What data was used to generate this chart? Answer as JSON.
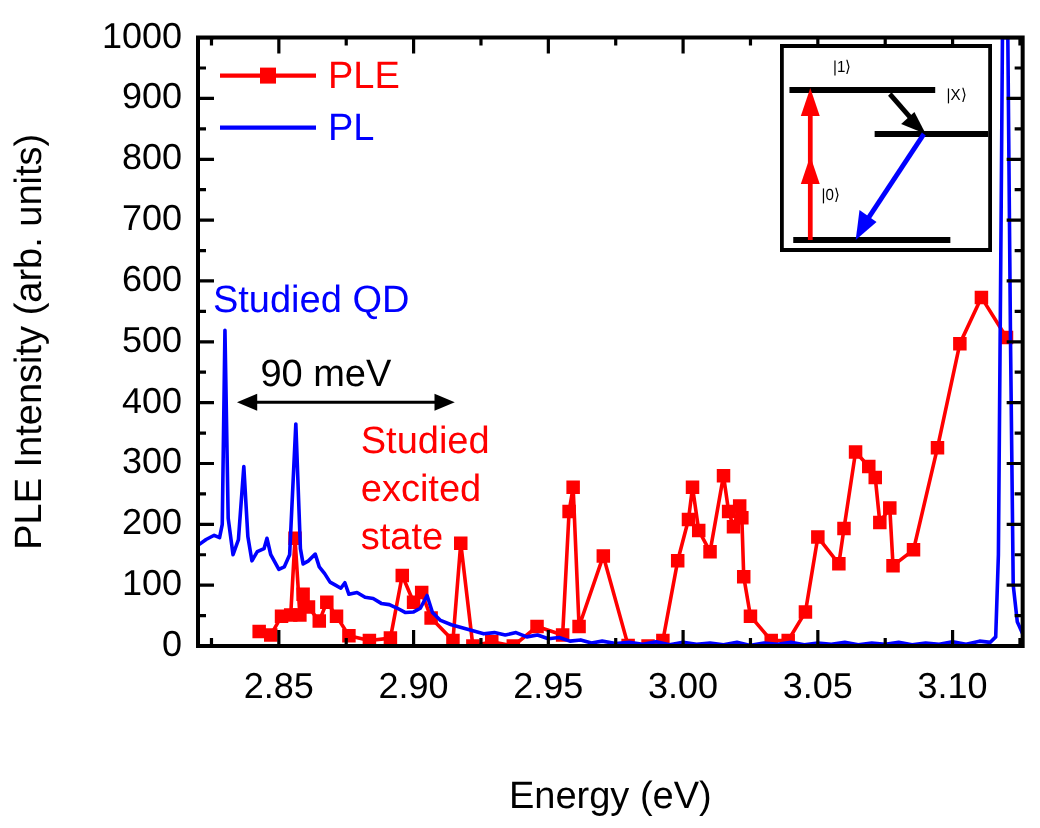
{
  "chart_data": {
    "type": "line",
    "xlabel": "Energy (eV)",
    "ylabel": "PLE Intensity (arb. units)",
    "xlim": [
      2.82,
      3.126
    ],
    "xticks": [
      {
        "value": 2.825,
        "label": null
      },
      2.85,
      {
        "value": 2.875,
        "label": null
      },
      {
        "value": 2.9,
        "label": "2.90"
      },
      {
        "value": 2.925,
        "label": null
      },
      2.95,
      {
        "value": 2.975,
        "label": null
      },
      {
        "value": 3.0,
        "label": "3.00"
      },
      {
        "value": 3.025,
        "label": null
      },
      3.05,
      {
        "value": 3.075,
        "label": null
      },
      {
        "value": 3.1,
        "label": "3.10"
      },
      {
        "value": 3.125,
        "label": null
      }
    ],
    "ylim": [
      0,
      1000
    ],
    "yticks": [
      0,
      {
        "value": 50,
        "label": null
      },
      100,
      {
        "value": 150,
        "label": null
      },
      200,
      {
        "value": 250,
        "label": null
      },
      300,
      {
        "value": 350,
        "label": null
      },
      400,
      {
        "value": 450,
        "label": null
      },
      500,
      {
        "value": 550,
        "label": null
      },
      600,
      {
        "value": 650,
        "label": null
      },
      700,
      {
        "value": 750,
        "label": null
      },
      800,
      {
        "value": 850,
        "label": null
      },
      900,
      {
        "value": 950,
        "label": null
      },
      1000
    ],
    "grid": false,
    "legend": "top left",
    "series": [
      {
        "name": "PLE",
        "color": "#ff0000",
        "marker": "square",
        "x": [
          2.8427,
          2.847,
          2.851,
          2.8544,
          2.856,
          2.8578,
          2.859,
          2.861,
          2.865,
          2.8678,
          2.8714,
          2.876,
          2.8836,
          2.8914,
          2.8958,
          2.9,
          2.903,
          2.9065,
          2.9146,
          2.9175,
          2.922,
          2.929,
          2.937,
          2.9458,
          2.9553,
          2.9577,
          2.9592,
          2.9614,
          2.9704,
          2.9796,
          2.987,
          2.9925,
          2.998,
          3.002,
          3.0035,
          3.0058,
          3.01,
          3.015,
          3.0169,
          3.0187,
          3.021,
          3.0218,
          3.0225,
          3.025,
          3.0327,
          3.039,
          3.0454,
          3.05,
          3.0578,
          3.0597,
          3.064,
          3.0689,
          3.0713,
          3.073,
          3.0767,
          3.0779,
          3.0855,
          3.0944,
          3.1027,
          3.1107,
          3.12
        ],
        "values": [
          24,
          18,
          49,
          51,
          177,
          51,
          85,
          64,
          41,
          72,
          49,
          17,
          9,
          13,
          116,
          72,
          88,
          46,
          9,
          169,
          0,
          7,
          0,
          32,
          18,
          221,
          261,
          32,
          148,
          1,
          0,
          9,
          140,
          208,
          261,
          190,
          155,
          280,
          221,
          196,
          230,
          211,
          114,
          49,
          9,
          9,
          56,
          179,
          135,
          193,
          319,
          295,
          277,
          203,
          227,
          132,
          158,
          326,
          497,
          573,
          507
        ]
      },
      {
        "name": "PL",
        "color": "#0000ff",
        "marker": "none",
        "x": [
          2.8205,
          2.823,
          2.826,
          2.828,
          2.829,
          2.83,
          2.8312,
          2.833,
          2.835,
          2.837,
          2.8385,
          2.84,
          2.842,
          2.8445,
          2.8456,
          2.847,
          2.85,
          2.852,
          2.854,
          2.8563,
          2.858,
          2.859,
          2.861,
          2.8635,
          2.865,
          2.867,
          2.869,
          2.871,
          2.873,
          2.8745,
          2.876,
          2.879,
          2.882,
          2.885,
          2.888,
          2.891,
          2.894,
          2.897,
          2.9,
          2.9025,
          2.905,
          2.907,
          2.91,
          2.914,
          2.918,
          2.922,
          2.926,
          2.93,
          2.934,
          2.938,
          2.942,
          2.946,
          2.95,
          2.954,
          2.958,
          2.962,
          2.966,
          2.97,
          2.975,
          2.98,
          2.985,
          2.99,
          2.995,
          3.0,
          3.005,
          3.01,
          3.015,
          3.02,
          3.025,
          3.03,
          3.035,
          3.04,
          3.045,
          3.05,
          3.055,
          3.06,
          3.065,
          3.07,
          3.075,
          3.08,
          3.085,
          3.09,
          3.095,
          3.1,
          3.105,
          3.11,
          3.114,
          3.116,
          3.117,
          3.118,
          3.1185,
          3.1205,
          3.1215,
          3.1225,
          3.124,
          3.126
        ],
        "values": [
          167,
          175,
          182,
          178,
          200,
          519,
          210,
          150,
          175,
          295,
          180,
          140,
          155,
          160,
          177,
          150,
          126,
          130,
          150,
          365,
          160,
          135,
          140,
          151,
          130,
          119,
          105,
          100,
          95,
          104,
          85,
          88,
          80,
          78,
          70,
          68,
          62,
          55,
          56,
          62,
          83,
          55,
          42,
          35,
          30,
          25,
          20,
          22,
          18,
          22,
          15,
          18,
          12,
          14,
          8,
          10,
          5,
          8,
          4,
          6,
          3,
          7,
          2,
          6,
          3,
          5,
          2,
          6,
          1,
          5,
          3,
          6,
          2,
          5,
          3,
          6,
          2,
          5,
          3,
          6,
          2,
          5,
          3,
          7,
          3,
          8,
          6,
          15,
          150,
          700,
          1000,
          1000,
          500,
          100,
          40,
          20
        ]
      }
    ],
    "annotations": [
      {
        "text": "Studied QD",
        "x": 2.83,
        "y": 519
      },
      "90 meV",
      {
        "text": "Studied excited state",
        "x": 2.9175,
        "y": 169
      },
      "|1⟩",
      "|X⟩",
      "|0⟩"
    ]
  }
}
